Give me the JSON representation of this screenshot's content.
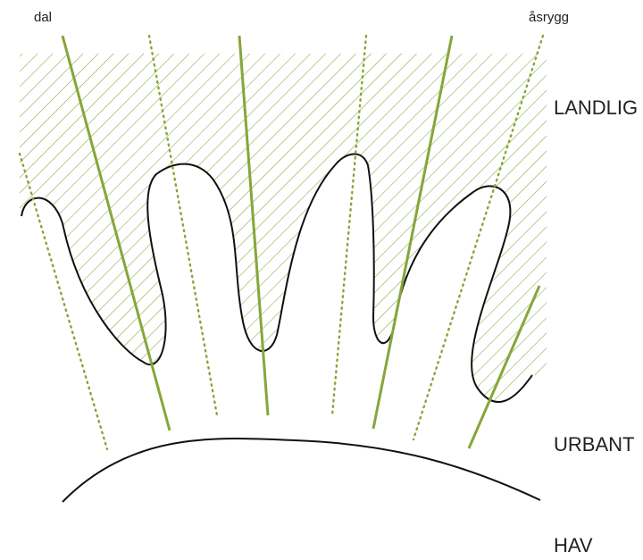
{
  "labels": {
    "valley": "dal",
    "ridge": "åsrygg",
    "rural": "LANDLIG",
    "urban": "URBANT",
    "sea": "HAV"
  },
  "colors": {
    "green": "#86a63a",
    "outline": "#111111",
    "text": "#222222"
  }
}
